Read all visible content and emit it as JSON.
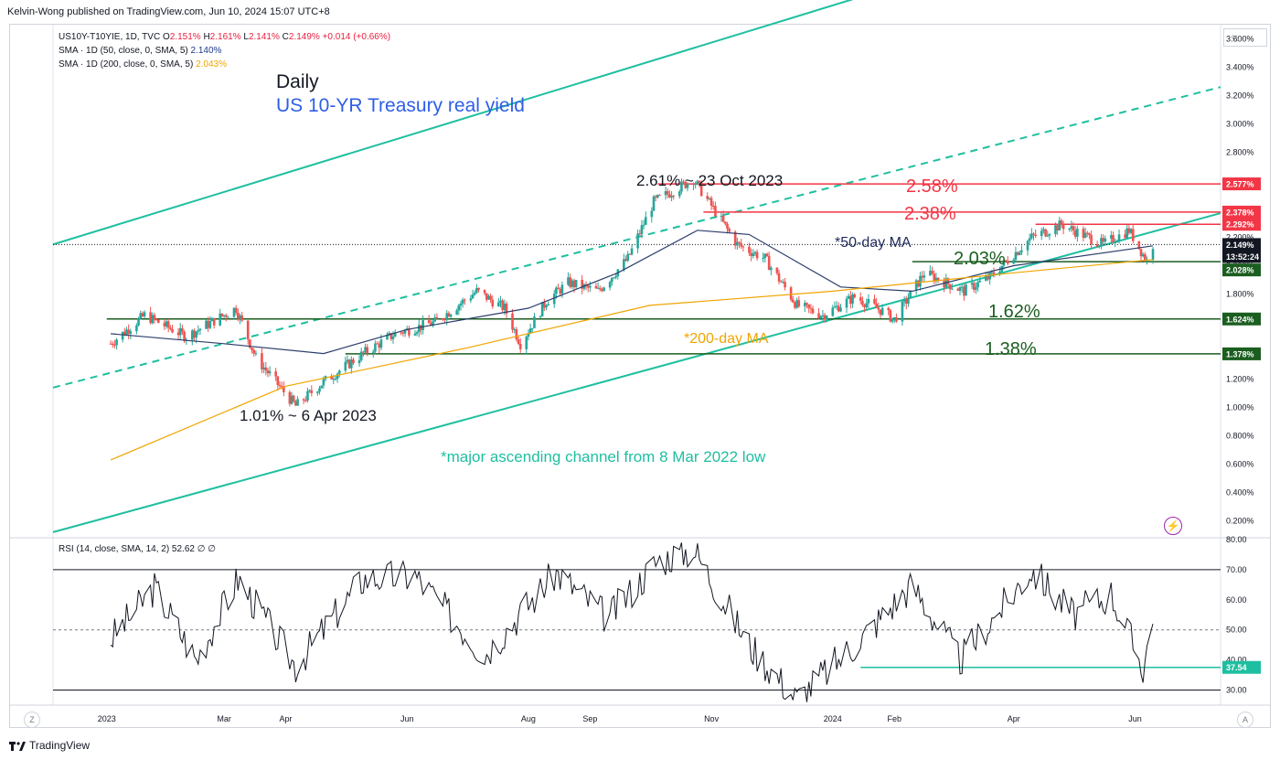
{
  "publisher": "Kelvin-Wong published on TradingView.com, Jun 10, 2024 15:07 UTC+8",
  "legend": {
    "symbol": "US10Y-T10YIE, 1D, TVC",
    "o_label": "O",
    "o_value": "2.151%",
    "h_label": "H",
    "h_value": "2.161%",
    "l_label": "L",
    "l_value": "2.141%",
    "c_label": "C",
    "c_value": "2.149%",
    "change": "+0.014 (+0.66%)",
    "sma50_label": "SMA · 1D (50, close, 0, SMA, 5)",
    "sma50_value": "2.140%",
    "sma200_label": "SMA · 1D (200, close, 0, SMA, 5)",
    "sma200_value": "2.043%"
  },
  "title": {
    "main": "Daily",
    "sub": "US 10-YR Treasury real yield"
  },
  "annotations": {
    "high": "2.61% ~ 23 Oct 2023",
    "low": "1.01% ~ 6 Apr 2023",
    "r258": "2.58%",
    "r238": "2.38%",
    "s203": "2.03%",
    "s162": "1.62%",
    "s138": "1.38%",
    "ma50": "*50-day MA",
    "ma200": "*200-day MA",
    "channel": "*major ascending channel from 8 Mar 2022 low"
  },
  "rsi_legend": "RSI (14, close, SMA, 14, 2)  52.62  ∅  ∅",
  "axis": {
    "unit_button": "%",
    "price_ticks": [
      "3.600%",
      "3.400%",
      "3.200%",
      "3.000%",
      "2.800%",
      "2.600%",
      "2.400%",
      "2.200%",
      "2.000%",
      "1.800%",
      "1.600%",
      "1.400%",
      "1.200%",
      "1.000%",
      "0.800%",
      "0.600%",
      "0.400%",
      "0.200%"
    ],
    "rsi_ticks": [
      "80.00",
      "70.00",
      "60.00",
      "50.00",
      "40.00",
      "30.00"
    ],
    "badges": {
      "b2577": "2.577%",
      "b2378": "2.378%",
      "b2292": "2.292%",
      "b2149": "2.149%",
      "countdown": "13:52:24",
      "b2028": "2.028%",
      "b1624": "1.624%",
      "b1378": "1.378%",
      "rsi3754": "37.54"
    },
    "time_labels": [
      "2023",
      "Mar",
      "Apr",
      "Jun",
      "Aug",
      "Sep",
      "Nov",
      "2024",
      "Feb",
      "Apr",
      "Jun"
    ],
    "z_button": "Z",
    "a_button": "A"
  },
  "footer": "TradingView",
  "colors": {
    "up": "#26a69a",
    "down": "#ef5350",
    "channel": "#1ebfa0",
    "sma50": "#2c3e6b",
    "sma200": "#f0a500",
    "resistance": "#f23645",
    "support": "#1b5e20",
    "title_blue": "#2f5ee6",
    "ma200_text": "#f0a500",
    "channel_text": "#1ebfa0"
  },
  "chart_data": [
    {
      "type": "line",
      "title": "US 10-YR Treasury real yield",
      "subtitle": "Daily",
      "ylabel": "%",
      "ylim": [
        0.1,
        3.7
      ],
      "series": [
        {
          "name": "US10Y-T10YIE (close)",
          "x": [
            "2023-01-03",
            "2023-01-20",
            "2023-02-10",
            "2023-03-07",
            "2023-03-17",
            "2023-04-06",
            "2023-04-20",
            "2023-05-10",
            "2023-05-26",
            "2023-06-15",
            "2023-07-06",
            "2023-07-20",
            "2023-07-28",
            "2023-08-10",
            "2023-08-21",
            "2023-09-05",
            "2023-09-20",
            "2023-10-03",
            "2023-10-23",
            "2023-11-03",
            "2023-11-14",
            "2023-11-28",
            "2023-12-14",
            "2023-12-27",
            "2024-01-12",
            "2024-01-26",
            "2024-02-01",
            "2024-02-16",
            "2024-03-07",
            "2024-03-20",
            "2024-04-10",
            "2024-04-25",
            "2024-05-16",
            "2024-05-29",
            "2024-06-07",
            "2024-06-10"
          ],
          "values": [
            1.45,
            1.65,
            1.5,
            1.7,
            1.35,
            1.01,
            1.18,
            1.38,
            1.52,
            1.6,
            1.82,
            1.7,
            1.45,
            1.75,
            1.88,
            1.82,
            2.05,
            2.45,
            2.61,
            2.38,
            2.15,
            2.05,
            1.72,
            1.65,
            1.78,
            1.68,
            1.62,
            1.95,
            1.82,
            1.92,
            2.2,
            2.29,
            2.15,
            2.25,
            2.03,
            2.149
          ]
        },
        {
          "name": "SMA · 1D (50, close, 0, SMA, 5)",
          "x": [
            "2023-01-03",
            "2023-03-01",
            "2023-04-20",
            "2023-06-01",
            "2023-08-01",
            "2023-09-15",
            "2023-10-25",
            "2023-11-20",
            "2024-01-05",
            "2024-02-10",
            "2024-04-01",
            "2024-06-10"
          ],
          "values": [
            1.52,
            1.45,
            1.38,
            1.55,
            1.7,
            1.95,
            2.25,
            2.22,
            1.85,
            1.82,
            2.0,
            2.14
          ]
        },
        {
          "name": "SMA · 1D (200, close, 0, SMA, 5)",
          "x": [
            "2023-01-03",
            "2023-04-01",
            "2023-07-01",
            "2023-10-01",
            "2024-01-01",
            "2024-04-01",
            "2024-06-10"
          ],
          "values": [
            0.63,
            1.15,
            1.42,
            1.72,
            1.82,
            1.95,
            2.043
          ]
        }
      ],
      "levels": [
        2.577,
        2.378,
        2.292,
        2.028,
        1.624,
        1.378
      ],
      "grid": false
    },
    {
      "type": "line",
      "title": "RSI (14, close, SMA, 14, 2)",
      "ylim": [
        25,
        80
      ],
      "series": [
        {
          "name": "RSI",
          "x": [
            "2023-01-03",
            "2023-01-25",
            "2023-02-15",
            "2023-03-08",
            "2023-04-06",
            "2023-05-10",
            "2023-06-05",
            "2023-07-10",
            "2023-08-15",
            "2023-09-10",
            "2023-10-05",
            "2023-10-23",
            "2023-11-20",
            "2023-12-14",
            "2024-01-15",
            "2024-02-10",
            "2024-03-05",
            "2024-04-10",
            "2024-05-01",
            "2024-05-20",
            "2024-06-05",
            "2024-06-10"
          ],
          "values": [
            47,
            64,
            40,
            67,
            38,
            67,
            68,
            42,
            69,
            54,
            73,
            77,
            45,
            27,
            47,
            65,
            40,
            70,
            55,
            62,
            37.5,
            52.62
          ]
        }
      ],
      "levels": [
        70,
        50,
        30,
        37.54
      ]
    }
  ]
}
